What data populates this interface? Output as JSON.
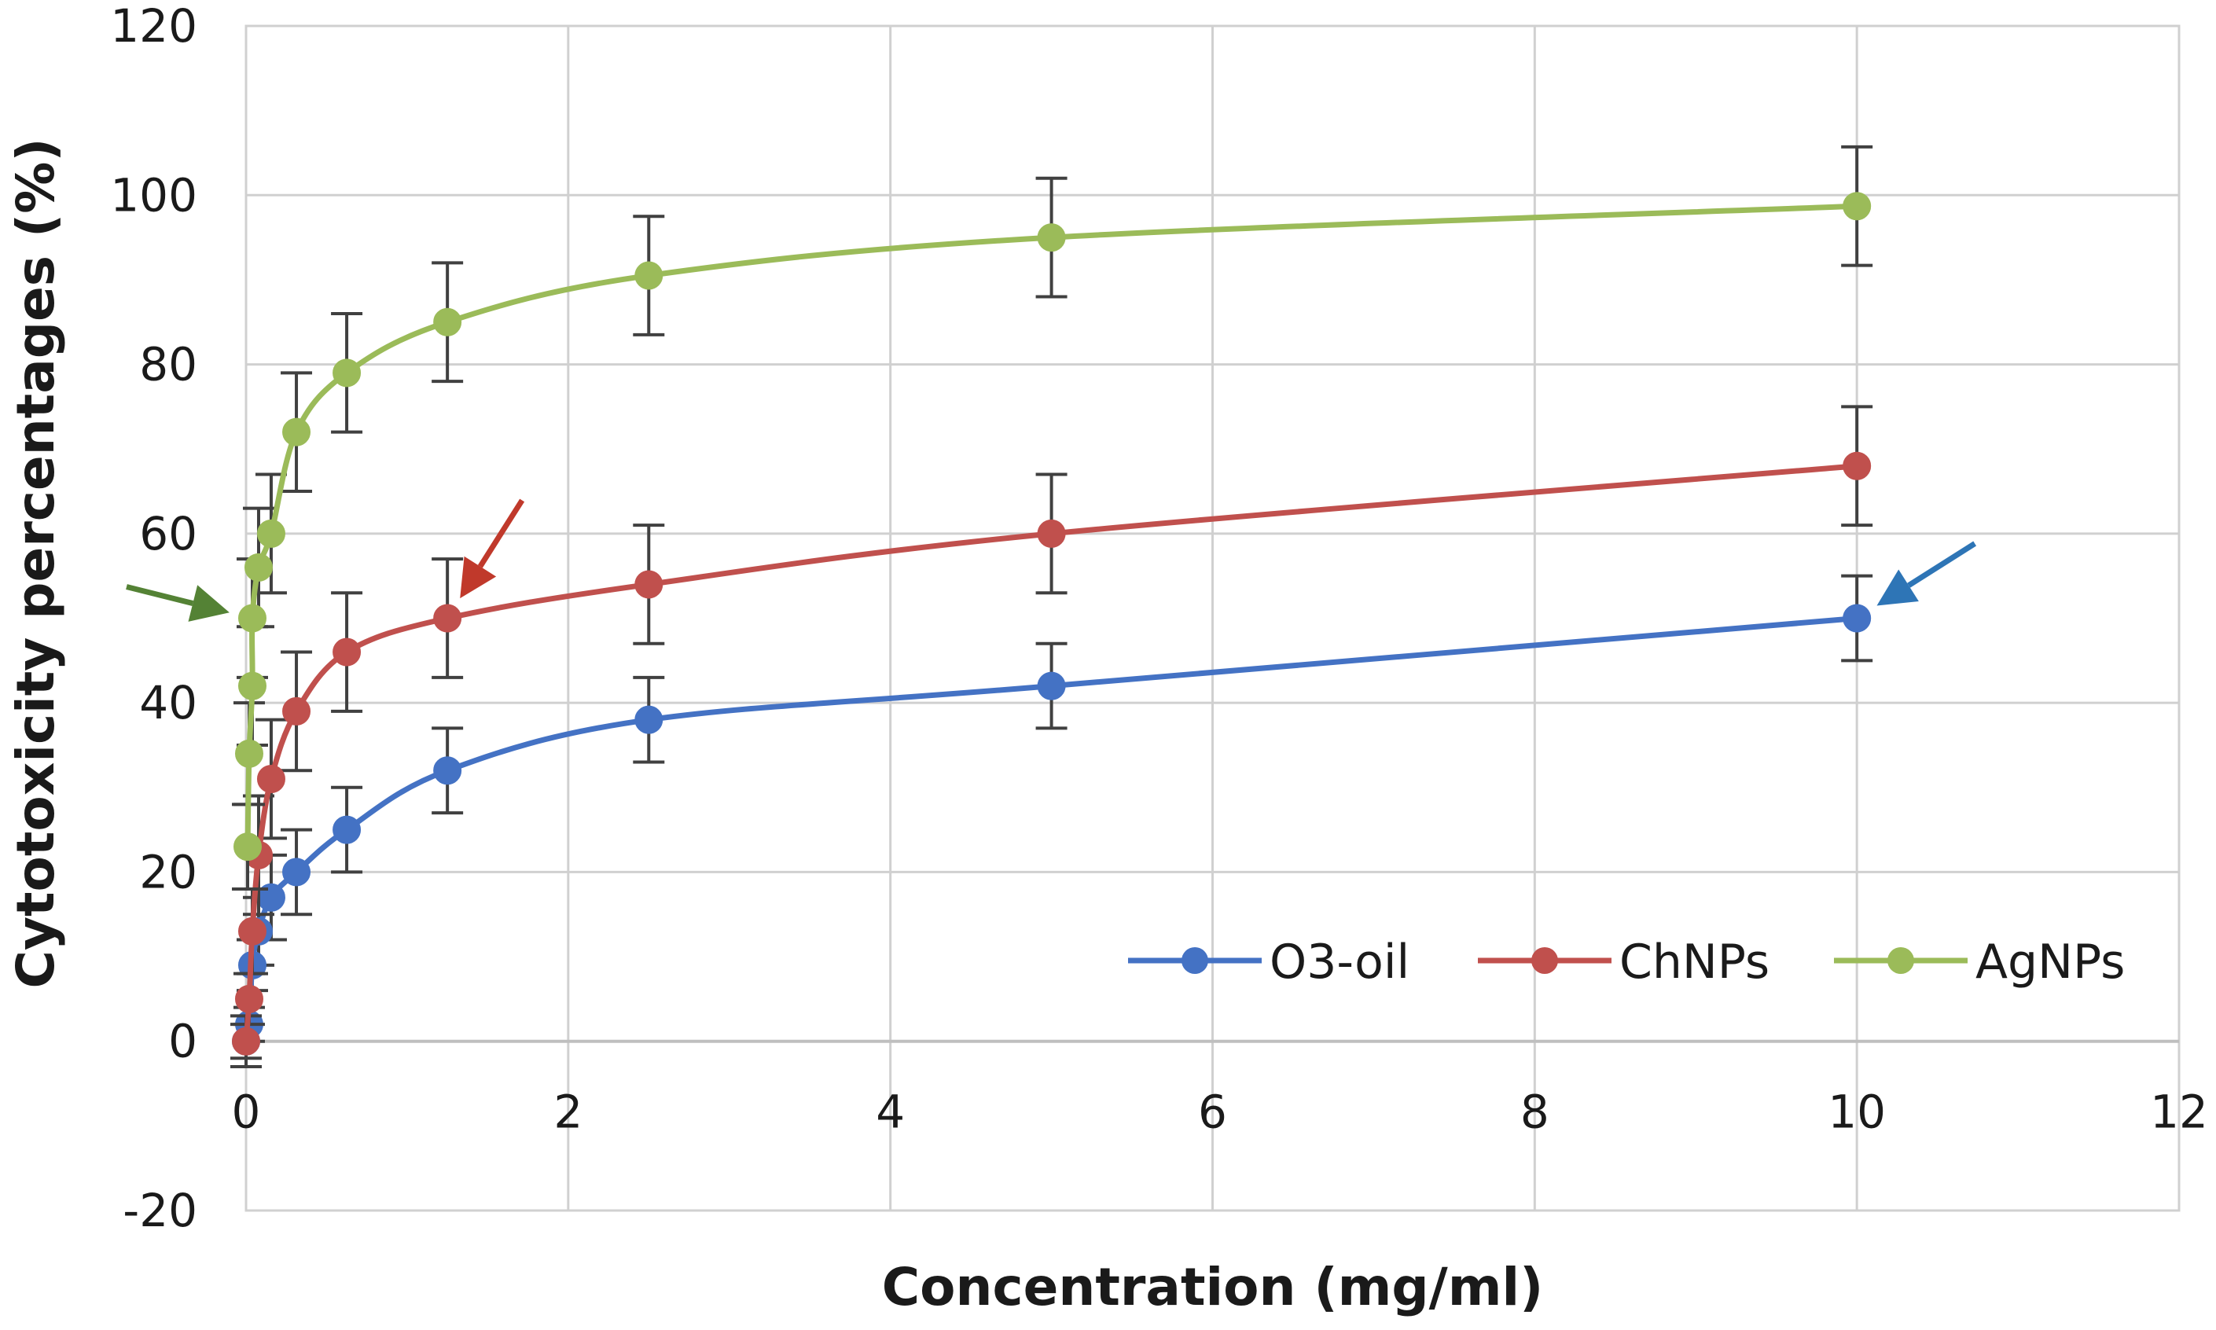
{
  "chart_data": {
    "type": "line",
    "title": "",
    "xlabel": "Concentration (mg/ml)",
    "ylabel": "Cytotoxicity percentages (%)",
    "xlim": [
      0,
      12
    ],
    "ylim": [
      -20,
      120
    ],
    "xticks": [
      0,
      2,
      4,
      6,
      8,
      10,
      12
    ],
    "yticks": [
      -20,
      0,
      20,
      40,
      60,
      80,
      100,
      120
    ],
    "xtick_labels": [
      "0",
      "2",
      "4",
      "6",
      "8",
      "10",
      "12"
    ],
    "ytick_labels": [
      "-20",
      "0",
      "20",
      "40",
      "60",
      "80",
      "100",
      "120"
    ],
    "grid": true,
    "legend_position": "bottom-right",
    "x": [
      0,
      0.0195,
      0.039,
      0.078,
      0.156,
      0.3125,
      0.625,
      1.25,
      2.5,
      5,
      10
    ],
    "series": [
      {
        "name": "O3-oil",
        "color": "#4472C4",
        "values": [
          0,
          2,
          9,
          13,
          17,
          20,
          25,
          32,
          38,
          42,
          50
        ],
        "errors": [
          2,
          2,
          3,
          4,
          5,
          5,
          5,
          5,
          5,
          5,
          5
        ]
      },
      {
        "name": "ChNPs",
        "color": "#C0504D",
        "values": [
          0,
          5,
          13,
          22,
          31,
          39,
          46,
          50,
          54,
          60,
          68
        ],
        "errors": [
          3,
          3,
          5,
          7,
          7,
          7,
          7,
          7,
          7,
          7,
          7
        ]
      },
      {
        "name": "AgNPs",
        "color": "#9BBB59",
        "values": [
          23,
          34,
          42,
          50,
          56,
          60,
          72,
          79,
          85,
          90.5,
          95,
          98.7
        ],
        "x": [
          0.0098,
          0.0195,
          0.039,
          0.039,
          0.078,
          0.156,
          0.3125,
          0.625,
          1.25,
          2.5,
          5,
          10
        ],
        "errors": [
          5,
          6,
          7,
          7,
          7,
          7,
          7,
          7,
          7,
          7,
          7,
          7
        ]
      }
    ],
    "annotations": [
      {
        "kind": "arrow",
        "target_series": "AgNPs",
        "target_x": 0.039,
        "target_y": 50,
        "color": "#548235"
      },
      {
        "kind": "arrow",
        "target_series": "ChNPs",
        "target_x": 1.25,
        "target_y": 50,
        "color": "#C0392B"
      },
      {
        "kind": "arrow",
        "target_series": "O3-oil",
        "target_x": 10,
        "target_y": 50,
        "color": "#2E75B6"
      }
    ]
  }
}
